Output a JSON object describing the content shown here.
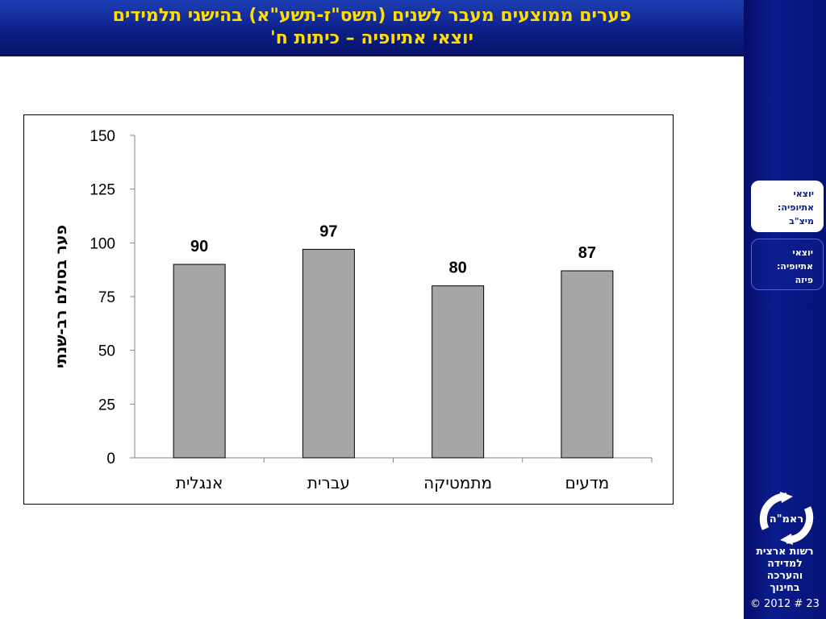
{
  "header": {
    "line1": "פערים ממוצעים מעבר לשנים (תשס\"ז-תשע\"א) בהישגי תלמידים",
    "line2": "יוצאי אתיופיה – כיתות ח'"
  },
  "sidebar": {
    "tabs": [
      {
        "lines": [
          "יוצאי",
          "אתיופיה:",
          "מיצ\"ב"
        ],
        "active": true
      },
      {
        "lines": [
          "יוצאי",
          "אתיופיה:",
          "פיזה"
        ],
        "active": false
      }
    ],
    "logo_text": "ראמ\"ה",
    "org_lines": [
      "רשות ארצית",
      "למדידה",
      "והערכה",
      "בחינוך"
    ],
    "footer": "© 2012 # 23"
  },
  "colors": {
    "header_gradient_top": "#1d3fb4",
    "header_gradient_bottom": "#061267",
    "title_yellow": "#ffdd00",
    "sidebar_navy": "#0a1d8c",
    "bar_fill": "#a6a6a6"
  },
  "chart_data": {
    "type": "bar",
    "categories": [
      "אנגלית",
      "עברית",
      "מתמטיקה",
      "מדעים"
    ],
    "values": [
      90,
      97,
      80,
      87
    ],
    "data_labels": [
      "90",
      "97",
      "80",
      "87"
    ],
    "ylabel": "פער בסולם רב-שנתי",
    "xlabel": "",
    "ylim": [
      0,
      150
    ],
    "yticks": [
      0,
      25,
      50,
      75,
      100,
      125,
      150
    ],
    "grid": false,
    "legend": "none"
  }
}
